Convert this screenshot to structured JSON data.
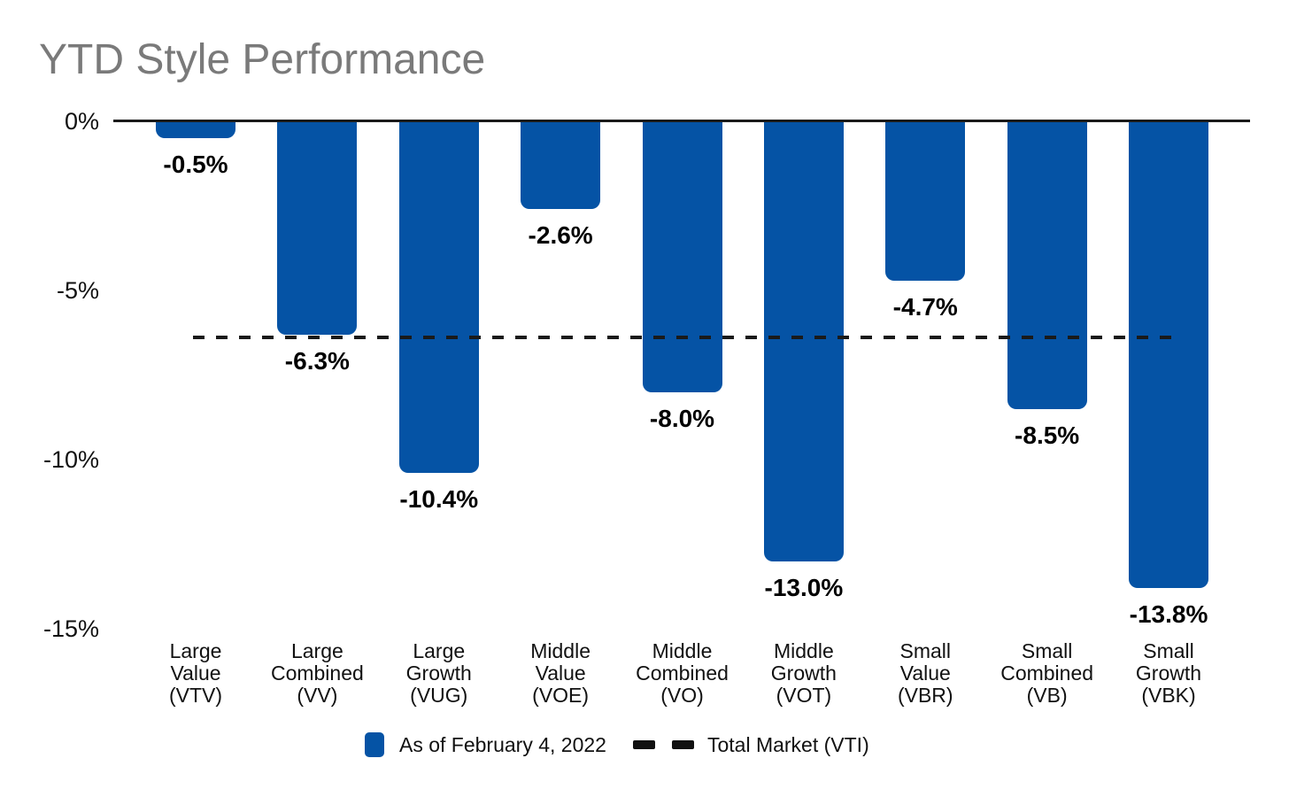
{
  "chart_data": {
    "type": "bar",
    "title": "YTD Style Performance",
    "categories": [
      "Large Value (VTV)",
      "Large Combined (VV)",
      "Large Growth (VUG)",
      "Middle Value (VOE)",
      "Middle Combined (VO)",
      "Middle Growth (VOT)",
      "Small Value (VBR)",
      "Small Combined (VB)",
      "Small Growth (VBK)"
    ],
    "category_lines": [
      [
        "Large",
        "Value",
        "(VTV)"
      ],
      [
        "Large",
        "Combined",
        "(VV)"
      ],
      [
        "Large",
        "Growth",
        "(VUG)"
      ],
      [
        "Middle",
        "Value",
        "(VOE)"
      ],
      [
        "Middle",
        "Combined",
        "(VO)"
      ],
      [
        "Middle",
        "Growth",
        "(VOT)"
      ],
      [
        "Small",
        "Value",
        "(VBR)"
      ],
      [
        "Small",
        "Combined",
        "(VB)"
      ],
      [
        "Small",
        "Growth",
        "(VBK)"
      ]
    ],
    "tickers": [
      "VTV",
      "VV",
      "VUG",
      "VOE",
      "VO",
      "VOT",
      "VBR",
      "VB",
      "VBK"
    ],
    "values": [
      -0.5,
      -6.3,
      -10.4,
      -2.6,
      -8.0,
      -13.0,
      -4.7,
      -8.5,
      -13.8
    ],
    "value_labels": [
      "-0.5%",
      "-6.3%",
      "-10.4%",
      "-2.6%",
      "-8.0%",
      "-13.0%",
      "-4.7%",
      "-8.5%",
      "-13.8%"
    ],
    "y_ticks": [
      {
        "label": "0%",
        "value": 0
      },
      {
        "label": "-5%",
        "value": -5
      },
      {
        "label": "-10%",
        "value": -10
      },
      {
        "label": "-15%",
        "value": -15
      }
    ],
    "ylim": [
      0,
      -15
    ],
    "grid": false,
    "reference_line": {
      "value": -6.4,
      "name": "Total Market (VTI)",
      "style": "dashed",
      "color": "#1a1a1a"
    },
    "legend_position": "bottom",
    "legend": [
      {
        "swatch": "bar",
        "label": "As of February 4, 2022"
      },
      {
        "swatch": "dashed-line",
        "label": "Total Market (VTI)"
      }
    ],
    "colors": {
      "bar": "#0553a5",
      "axis": "#1a1a1a",
      "title": "#7a7a7a",
      "text": "#000000"
    }
  }
}
